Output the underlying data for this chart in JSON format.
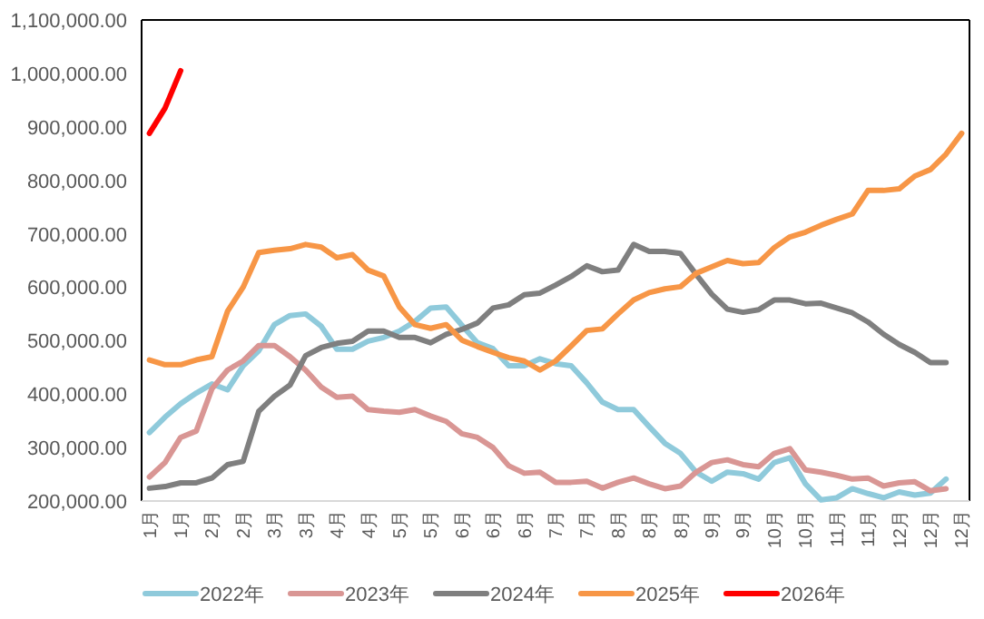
{
  "chart_data": {
    "type": "line",
    "categories": [
      "1月",
      null,
      "1月",
      null,
      "2月",
      null,
      "2月",
      null,
      "3月",
      null,
      "3月",
      null,
      "4月",
      null,
      "4月",
      null,
      "5月",
      null,
      "5月",
      null,
      "6月",
      null,
      "6月",
      null,
      "6月",
      null,
      "7月",
      null,
      "7月",
      null,
      "8月",
      null,
      "8月",
      null,
      "8月",
      null,
      "9月",
      null,
      "9月",
      null,
      "10月",
      null,
      "10月",
      null,
      "11月",
      null,
      "11月",
      null,
      "12月",
      null,
      "12月",
      null,
      "12月"
    ],
    "ylim": [
      200000,
      1100000
    ],
    "yticks": [
      {
        "value": 200000,
        "label": "200,000.00"
      },
      {
        "value": 300000,
        "label": "300,000.00"
      },
      {
        "value": 400000,
        "label": "400,000.00"
      },
      {
        "value": 500000,
        "label": "500,000.00"
      },
      {
        "value": 600000,
        "label": "600,000.00"
      },
      {
        "value": 700000,
        "label": "700,000.00"
      },
      {
        "value": 800000,
        "label": "800,000.00"
      },
      {
        "value": 900000,
        "label": "900,000.00"
      },
      {
        "value": 1000000,
        "label": "1,000,000.00"
      },
      {
        "value": 1100000,
        "label": "1,100,000.00"
      }
    ],
    "legend": "bottom",
    "marker": "none",
    "line_style": "solid",
    "series": [
      {
        "name": "2022年",
        "color": "#8fcadb",
        "values": [
          328000,
          357000,
          382000,
          402000,
          419000,
          408000,
          453000,
          481000,
          530000,
          547000,
          550000,
          527000,
          484000,
          484000,
          499000,
          506000,
          518000,
          536000,
          561000,
          563000,
          529000,
          496000,
          485000,
          453000,
          453000,
          466000,
          457000,
          453000,
          421000,
          385000,
          371000,
          371000,
          339000,
          308000,
          289000,
          254000,
          237000,
          254000,
          251000,
          241000,
          272000,
          281000,
          232000,
          202000,
          206000,
          223000,
          214000,
          206000,
          217000,
          211000,
          215000,
          241000,
          null
        ]
      },
      {
        "name": "2023年",
        "color": "#d99694",
        "values": [
          245000,
          272000,
          319000,
          331000,
          410000,
          445000,
          462000,
          491000,
          491000,
          470000,
          445000,
          413000,
          394000,
          396000,
          371000,
          368000,
          366000,
          371000,
          359000,
          349000,
          326000,
          319000,
          300000,
          266000,
          252000,
          254000,
          235000,
          235000,
          237000,
          224000,
          235000,
          243000,
          232000,
          223000,
          228000,
          254000,
          272000,
          277000,
          268000,
          264000,
          289000,
          298000,
          258000,
          254000,
          248000,
          241000,
          243000,
          228000,
          234000,
          236000,
          219000,
          223000,
          null
        ]
      },
      {
        "name": "2024年",
        "color": "#7f7f7f",
        "values": [
          224000,
          227000,
          234000,
          234000,
          243000,
          268000,
          274000,
          368000,
          396000,
          417000,
          472000,
          487000,
          495000,
          499000,
          518000,
          518000,
          506000,
          506000,
          496000,
          512000,
          521000,
          533000,
          561000,
          567000,
          586000,
          589000,
          604000,
          620000,
          640000,
          629000,
          632000,
          680000,
          667000,
          667000,
          663000,
          624000,
          587000,
          559000,
          553000,
          558000,
          576000,
          576000,
          569000,
          570000,
          561000,
          552000,
          535000,
          512000,
          493000,
          478000,
          459000,
          459000,
          null
        ]
      },
      {
        "name": "2025年",
        "color": "#f79646",
        "values": [
          464000,
          455000,
          455000,
          464000,
          470000,
          555000,
          600000,
          665000,
          669000,
          672000,
          680000,
          675000,
          655000,
          661000,
          632000,
          621000,
          563000,
          530000,
          523000,
          530000,
          501000,
          489000,
          478000,
          468000,
          462000,
          445000,
          462000,
          490000,
          519000,
          522000,
          550000,
          576000,
          590000,
          597000,
          601000,
          626000,
          638000,
          650000,
          644000,
          646000,
          674000,
          694000,
          703000,
          716000,
          727000,
          737000,
          781000,
          781000,
          784000,
          808000,
          820000,
          849000,
          888000
        ]
      },
      {
        "name": "2026年",
        "color": "#ff0000",
        "values": [
          888000,
          935000,
          1005000,
          null,
          null,
          null,
          null,
          null,
          null,
          null,
          null,
          null,
          null,
          null,
          null,
          null,
          null,
          null,
          null,
          null,
          null,
          null,
          null,
          null,
          null,
          null,
          null,
          null,
          null,
          null,
          null,
          null,
          null,
          null,
          null,
          null,
          null,
          null,
          null,
          null,
          null,
          null,
          null,
          null,
          null,
          null,
          null,
          null,
          null,
          null,
          null,
          null,
          null
        ]
      }
    ]
  }
}
